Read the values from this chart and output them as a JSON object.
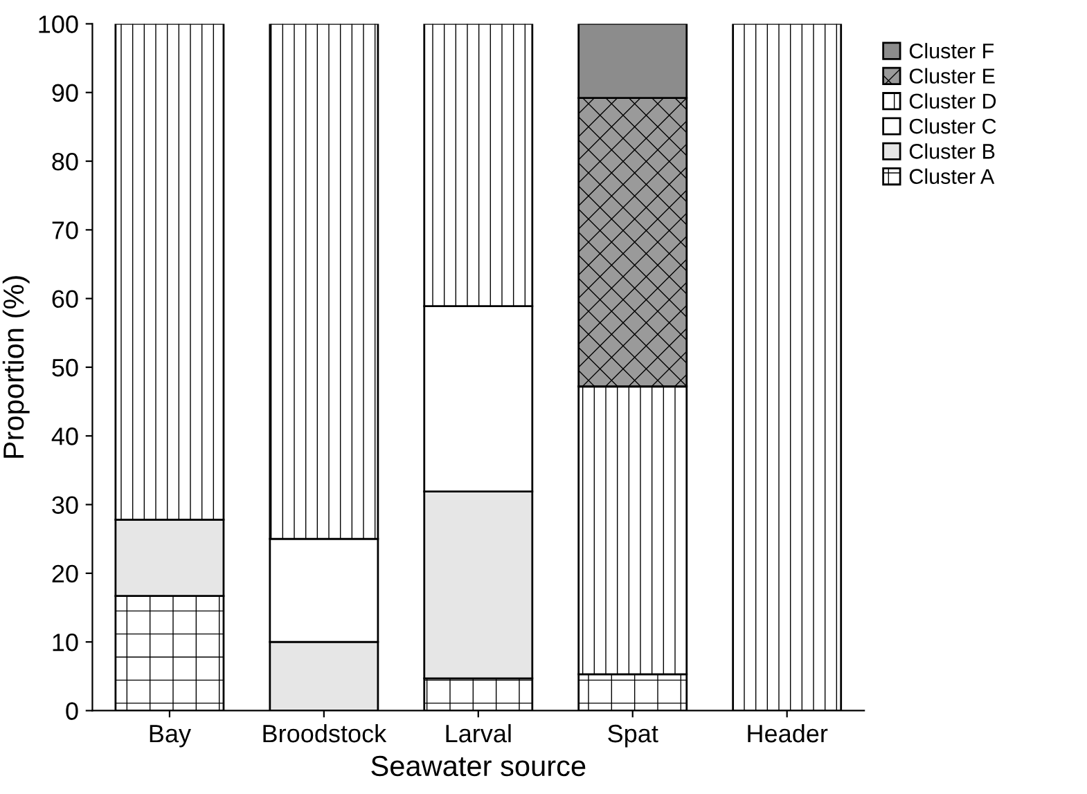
{
  "chart_data": {
    "type": "bar",
    "stacked": true,
    "xlabel": "Seawater source",
    "ylabel": "Proportion (%)",
    "categories": [
      "Bay",
      "Broodstock",
      "Larval",
      "Spat",
      "Header"
    ],
    "series": [
      {
        "name": "Cluster A",
        "color": "#ffffff",
        "values": [
          16.7,
          null,
          4.7,
          5.3,
          null
        ]
      },
      {
        "name": "Cluster B",
        "color": "#e6e6e6",
        "values": [
          11.1,
          10,
          27.2,
          null,
          null
        ]
      },
      {
        "name": "Cluster C",
        "color": "#ffffff",
        "values": [
          null,
          15,
          27,
          null,
          null
        ]
      },
      {
        "name": "Cluster D",
        "color": "#ffffff",
        "values": [
          72.2,
          75,
          41.1,
          41.9,
          100
        ]
      },
      {
        "name": "Cluster E",
        "color": "#9a9a9a",
        "values": [
          null,
          null,
          null,
          42,
          null
        ]
      },
      {
        "name": "Cluster F",
        "color": "#8c8c8c",
        "values": [
          null,
          null,
          null,
          10.8,
          null
        ]
      }
    ],
    "ylim": [
      0,
      100
    ],
    "yticks": [
      0,
      10,
      20,
      30,
      40,
      50,
      60,
      70,
      80,
      90,
      100
    ],
    "grid": false,
    "legend": "top right"
  }
}
